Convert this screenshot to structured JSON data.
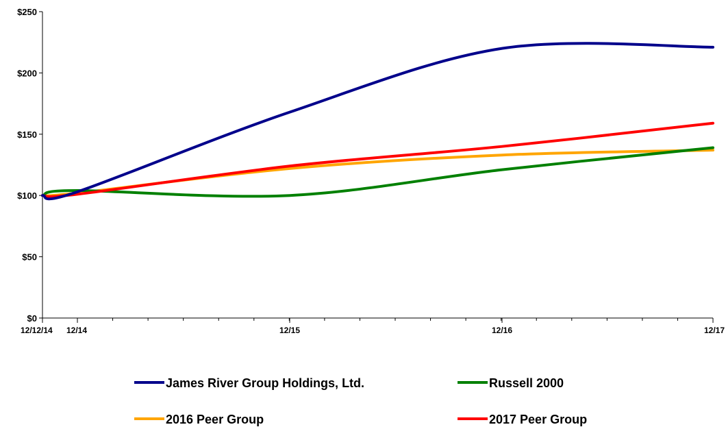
{
  "chart_data": {
    "type": "line",
    "title": "",
    "xlabel": "",
    "ylabel": "",
    "ylim": [
      0,
      250
    ],
    "y_ticks": [
      0,
      50,
      100,
      150,
      200,
      250
    ],
    "y_tick_labels": [
      "$0",
      "$50",
      "$100",
      "$150",
      "$200",
      "$250"
    ],
    "x_tick_labels": [
      "12/12/14",
      "12/14",
      "12/15",
      "12/16",
      "12/17"
    ],
    "x": [
      "12/12/14",
      "12/14",
      "12/15",
      "12/16",
      "12/17"
    ],
    "grid": false,
    "legend_position": "bottom",
    "series": [
      {
        "name": "James River Group Holdings, Ltd.",
        "color": "#00008B",
        "values": [
          100,
          103,
          168,
          220,
          221
        ]
      },
      {
        "name": "Russell 2000",
        "color": "#008000",
        "values": [
          100,
          104,
          100,
          121,
          139
        ]
      },
      {
        "name": "2016 Peer Group",
        "color": "#FFA500",
        "values": [
          100,
          102,
          122,
          133,
          137
        ]
      },
      {
        "name": "2017 Peer Group",
        "color": "#FF0000",
        "values": [
          100,
          101,
          124,
          140,
          159
        ]
      }
    ]
  }
}
